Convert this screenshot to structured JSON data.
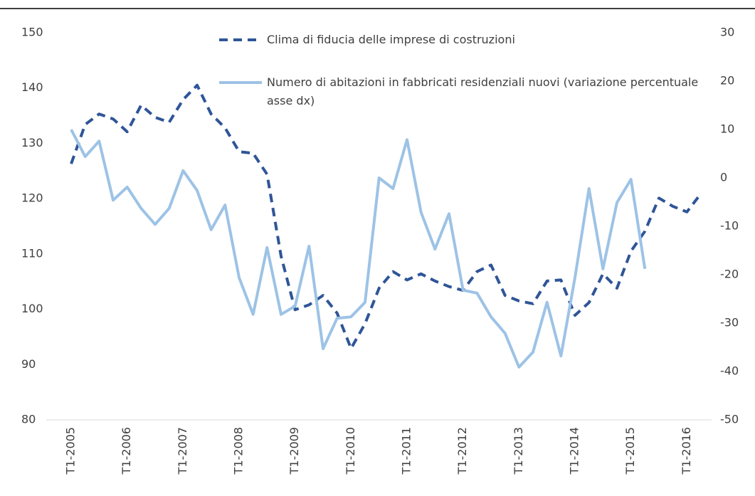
{
  "chart_data": {
    "type": "line",
    "categories": [
      "T1-2005",
      null,
      null,
      null,
      "T1-2006",
      null,
      null,
      null,
      "T1-2007",
      null,
      null,
      null,
      "T1-2008",
      null,
      null,
      null,
      "T1-2009",
      null,
      null,
      null,
      "T1-2010",
      null,
      null,
      null,
      "T1-2011",
      null,
      null,
      null,
      "T1-2012",
      null,
      null,
      null,
      "T1-2013",
      null,
      null,
      null,
      "T1-2014",
      null,
      null,
      null,
      "T1-2015",
      null,
      null,
      null,
      "T1-2016",
      null
    ],
    "series": [
      {
        "name": "Clima di fiducia delle imprese di costruzioni",
        "color": "#2f5597",
        "dashed": true,
        "values": [
          126.3,
          133.4,
          135.3,
          134.4,
          132.1,
          136.9,
          134.7,
          133.8,
          137.9,
          140.5,
          135.3,
          132.8,
          128.5,
          128.2,
          124.4,
          109.6,
          99.9,
          100.8,
          102.5,
          99.3,
          92.9,
          97.4,
          103.8,
          106.8,
          105.3,
          106.4,
          105.1,
          104.1,
          103.4,
          106.8,
          108.0,
          102.5,
          101.5,
          101.0,
          105.1,
          105.3,
          98.9,
          101.2,
          106.4,
          103.8,
          110.5,
          114.1,
          120.1,
          118.6,
          117.6,
          120.9
        ]
      },
      {
        "name": "Numero di abitazioni in fabbricati residenziali nuovi (variazione percentuale asse dx)",
        "color": "#9dc3e6",
        "dashed": false,
        "axis": "y2",
        "values": [
          10.0,
          4.4,
          7.6,
          -4.6,
          -1.9,
          -6.3,
          -9.6,
          -6.3,
          1.5,
          -2.6,
          -10.7,
          -5.6,
          -20.6,
          -28.2,
          -14.4,
          -28.2,
          -26.5,
          -14.1,
          -35.3,
          -29.0,
          -28.7,
          -25.7,
          0.0,
          -2.2,
          7.9,
          -7.1,
          -14.7,
          -7.4,
          -23.2,
          -23.8,
          -28.7,
          -32.1,
          -39.1,
          -36.0,
          -25.7,
          -36.8,
          -20.6,
          -2.2,
          -18.8,
          -5.1,
          -0.3,
          -18.8,
          null,
          null,
          null,
          null
        ]
      }
    ],
    "ylim": [
      80,
      150
    ],
    "yticks": [
      80,
      90,
      100,
      110,
      120,
      130,
      140,
      150
    ],
    "y2lim": [
      -50,
      30
    ],
    "y2ticks": [
      -50,
      -40,
      -30,
      -20,
      -10,
      0,
      10,
      20,
      30
    ],
    "grid": false
  }
}
